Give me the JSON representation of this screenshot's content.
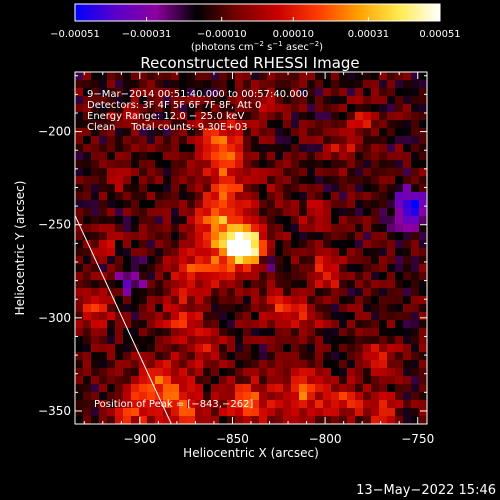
{
  "chart_data": {
    "type": "heatmap",
    "title": "Reconstructed RHESSI Image",
    "xlabel": "Heliocentric X (arcsec)",
    "ylabel": "Heliocentric Y (arcsec)",
    "xlim": [
      -935,
      -745
    ],
    "ylim": [
      -357,
      -168
    ],
    "x_ticks": [
      -900,
      -850,
      -800,
      -750
    ],
    "y_ticks": [
      -350,
      -300,
      -250,
      -200
    ],
    "x_tick_labels": [
      "−900",
      "−850",
      "−800",
      "−750"
    ],
    "y_tick_labels": [
      "−350",
      "−300",
      "−250",
      "−200"
    ],
    "colorbar": {
      "range": [
        -0.00051,
        0.00051
      ],
      "ticks": [
        -0.00051,
        -0.00031,
        -0.0001,
        0.0001,
        0.00031,
        0.00051
      ],
      "tick_labels": [
        "−0.00051",
        "−0.00031",
        "−0.00010",
        "0.00010",
        "0.00031",
        "0.00051"
      ],
      "unit_parts": [
        "(photons cm",
        "−2",
        " s",
        "−1",
        " asec",
        "−2",
        ")"
      ],
      "colors": [
        "#0000ff",
        "#5a00c8",
        "#8c00a0",
        "#000000",
        "#780000",
        "#c80000",
        "#ff3c00",
        "#ffa000",
        "#ffeb50",
        "#ffffff"
      ]
    },
    "annotations": [
      "9−Mar−2014 00:51:40.000 to 00:57:40.000",
      "Detectors: 3F 4F 5F 6F 7F 8F, Att 0",
      "Energy Range: 12.0 − 25.0 keV",
      "Clean     Total counts: 9.30E+03"
    ],
    "peak_label": "Position of Peak = [−843,−262]",
    "peak": [
      -843,
      -262
    ],
    "limb_line": [
      [
        -935,
        -245
      ],
      [
        -883,
        -357
      ]
    ],
    "timestamp": "13−May−2022 15:46",
    "intensity_sources": [
      {
        "x": -843,
        "y": -262,
        "value": 0.00051,
        "sigma": 7
      },
      {
        "x": -850,
        "y": -258,
        "value": 0.0003,
        "sigma": 13
      },
      {
        "x": -855,
        "y": -205,
        "value": 0.00028,
        "sigma": 9
      },
      {
        "x": -852,
        "y": -225,
        "value": 0.00022,
        "sigma": 9
      },
      {
        "x": -860,
        "y": -245,
        "value": 0.0002,
        "sigma": 8
      },
      {
        "x": -870,
        "y": -275,
        "value": 0.00022,
        "sigma": 9
      },
      {
        "x": -878,
        "y": -300,
        "value": 0.0002,
        "sigma": 8
      },
      {
        "x": -865,
        "y": -315,
        "value": 0.00018,
        "sigma": 8
      },
      {
        "x": -888,
        "y": -335,
        "value": 0.00028,
        "sigma": 9
      },
      {
        "x": -905,
        "y": -350,
        "value": 0.00024,
        "sigma": 8
      },
      {
        "x": -875,
        "y": -352,
        "value": 0.00026,
        "sigma": 9
      },
      {
        "x": -840,
        "y": -345,
        "value": 0.00028,
        "sigma": 9
      },
      {
        "x": -812,
        "y": -340,
        "value": 0.00032,
        "sigma": 8
      },
      {
        "x": -790,
        "y": -345,
        "value": 0.00022,
        "sigma": 7
      },
      {
        "x": -770,
        "y": -350,
        "value": 0.0002,
        "sigma": 7
      },
      {
        "x": -825,
        "y": -295,
        "value": 0.0002,
        "sigma": 7
      },
      {
        "x": -810,
        "y": -300,
        "value": 0.00018,
        "sigma": 6
      },
      {
        "x": -800,
        "y": -275,
        "value": 0.00026,
        "sigma": 7
      },
      {
        "x": -805,
        "y": -245,
        "value": 0.00015,
        "sigma": 6
      },
      {
        "x": -790,
        "y": -210,
        "value": 0.0002,
        "sigma": 6
      },
      {
        "x": -780,
        "y": -195,
        "value": 0.00017,
        "sigma": 6
      },
      {
        "x": -770,
        "y": -320,
        "value": 0.00022,
        "sigma": 6
      },
      {
        "x": -925,
        "y": -295,
        "value": 0.0002,
        "sigma": 8
      },
      {
        "x": -920,
        "y": -260,
        "value": 0.00015,
        "sigma": 6
      },
      {
        "x": -912,
        "y": -225,
        "value": 0.00014,
        "sigma": 6
      },
      {
        "x": -905,
        "y": -190,
        "value": 0.00012,
        "sigma": 5
      },
      {
        "x": -835,
        "y": -185,
        "value": 0.00013,
        "sigma": 6
      },
      {
        "x": -825,
        "y": -225,
        "value": 0.0001,
        "sigma": 5
      },
      {
        "x": -755,
        "y": -240,
        "value": -0.00035,
        "sigma": 7
      },
      {
        "x": -905,
        "y": -280,
        "value": -0.0002,
        "sigma": 6
      },
      {
        "x": -830,
        "y": -270,
        "value": -0.00015,
        "sigma": 6
      }
    ],
    "background_level": -0.00012,
    "noise_amplitude": 0.0001
  }
}
